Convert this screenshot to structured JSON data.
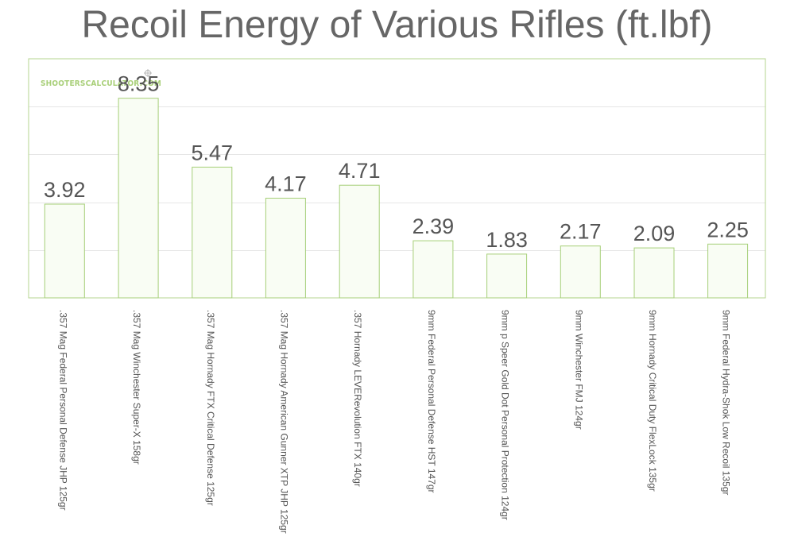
{
  "watermark": "SHOOTERSCALCULATOR.COM",
  "colors": {
    "title": "#666666",
    "frame": "#b5d48f",
    "bar_fill": "#f9fdf4",
    "bar_stroke": "#a6cf78",
    "grid": "#e6e6e6",
    "watermark": "#a8cf78",
    "text": "#555555"
  },
  "chart_data": {
    "type": "bar",
    "title": "Recoil Energy of Various Rifles (ft.lbf)",
    "xlabel": "",
    "ylabel": "",
    "ylim": [
      0,
      10
    ],
    "grid": true,
    "legend": "none",
    "categories": [
      ".357 Mag Federal Personal Defense JHP 125gr",
      ".357 Mag Winchester Super-X 158gr",
      ".357 Mag Hornady FTX Critical Defense 125gr",
      ".357 Mag Hornady American Gunner XTP JHP 125gr",
      ".357 Hornady LEVERevolution FTX 140gr",
      "9mm Federal Personal Defense HST 147gr",
      "9mm p Speer Gold Dot Personal Protection 124gr",
      "9mm Winchester FMJ 124gr",
      "9mm Hornady Critical Duty FlexLock 135gr",
      "9mm Federal Hydra-Shok Low Recoil 135gr"
    ],
    "values": [
      3.92,
      8.35,
      5.47,
      4.17,
      4.71,
      2.39,
      1.83,
      2.17,
      2.09,
      2.25
    ],
    "value_labels": [
      "3.92",
      "8.35",
      "5.47",
      "4.17",
      "4.71",
      "2.39",
      "1.83",
      "2.17",
      "2.09",
      "2.25"
    ]
  }
}
